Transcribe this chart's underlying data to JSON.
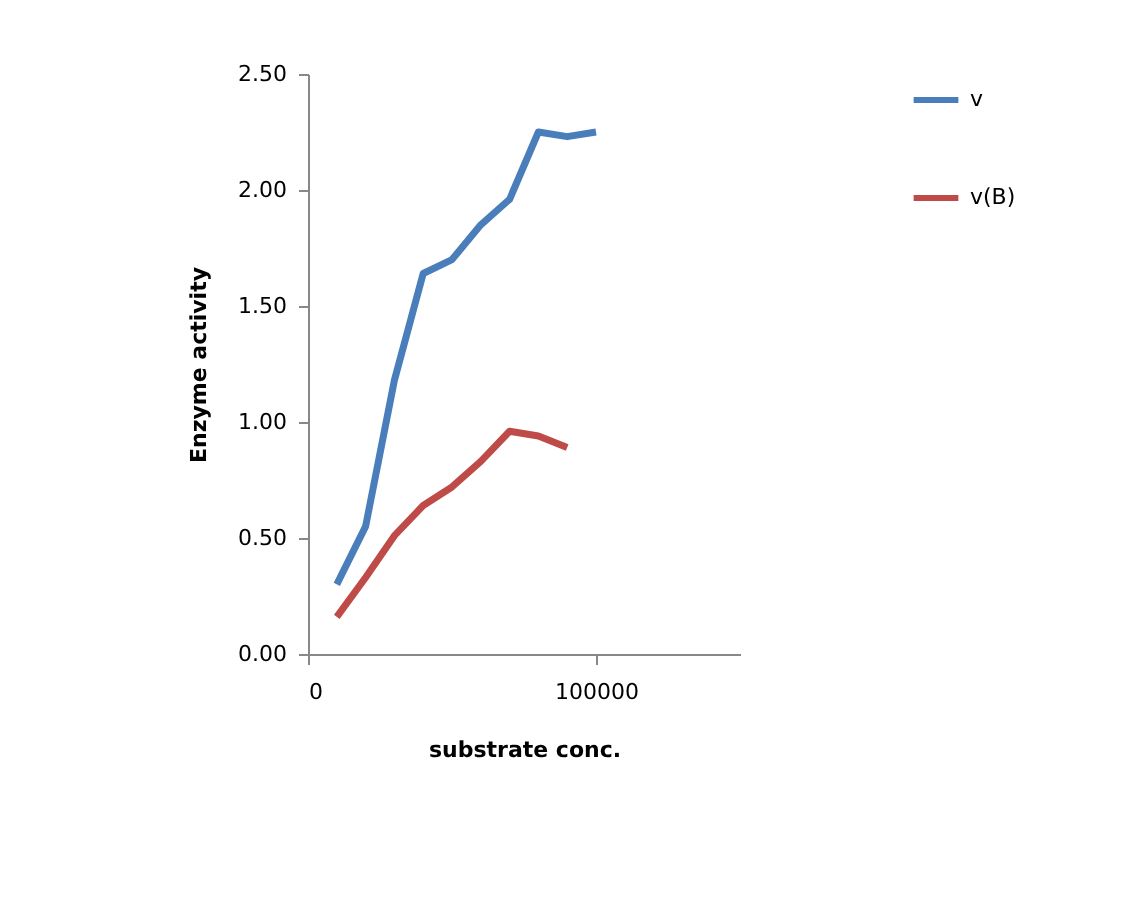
{
  "chart_data": {
    "type": "line",
    "xlabel": "substrate conc.",
    "ylabel": "Enzyme activity",
    "x": [
      10000,
      20000,
      30000,
      40000,
      50000,
      60000,
      70000,
      80000,
      90000,
      100000
    ],
    "series": [
      {
        "name": "v",
        "color": "#4a7ebb",
        "values": [
          0.3,
          0.55,
          1.18,
          1.64,
          1.7,
          1.85,
          1.96,
          2.25,
          2.23,
          2.25
        ]
      },
      {
        "name": "v(B)",
        "color": "#be4b48",
        "values": [
          0.16,
          0.33,
          0.51,
          0.64,
          0.72,
          0.83,
          0.96,
          0.94,
          0.89,
          null
        ]
      }
    ],
    "xlim": [
      0,
      150000
    ],
    "xticks": [
      0,
      100000
    ],
    "ylim": [
      0,
      2.5
    ],
    "yticks": [
      {
        "value": 0,
        "label": "0.00"
      },
      {
        "value": 0.5,
        "label": "0.50"
      },
      {
        "value": 1,
        "label": "1.00"
      },
      {
        "value": 1.5,
        "label": "1.50"
      },
      {
        "value": 2,
        "label": "2.00"
      },
      {
        "value": 2.5,
        "label": "2.50"
      }
    ],
    "grid": false,
    "legend": "right",
    "marker": "none",
    "line_style": "solid"
  }
}
